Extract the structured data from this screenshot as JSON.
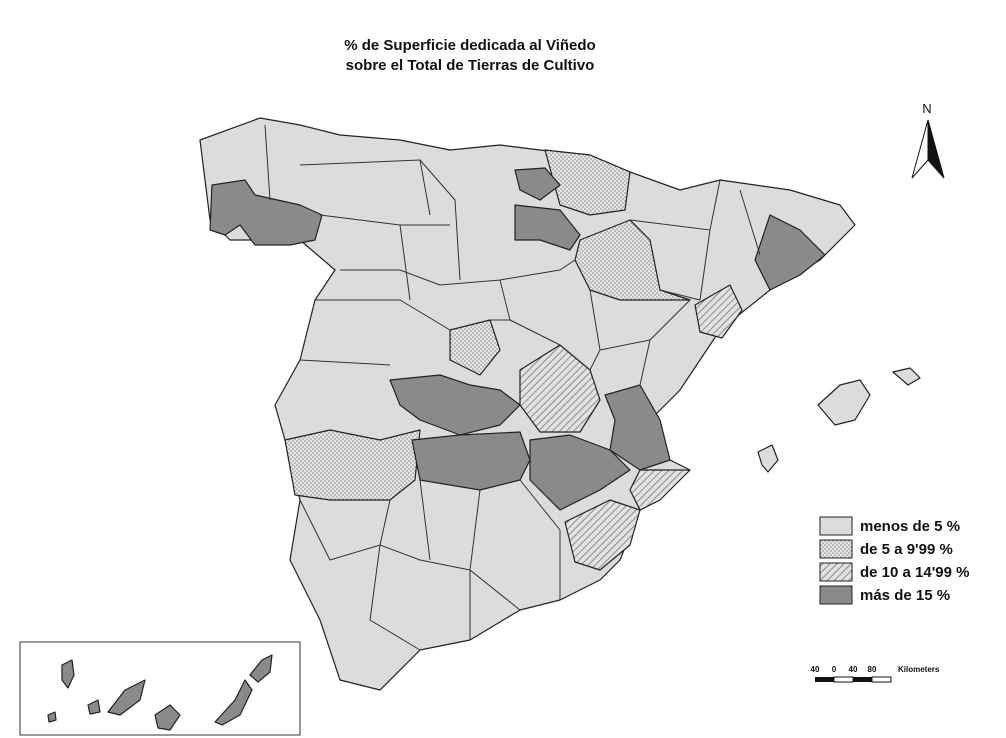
{
  "title": [
    "% de Superficie dedicada al Viñedo",
    "sobre el Total de Tierras de Cultivo"
  ],
  "north": "N",
  "legend": [
    "menos de 5 %",
    "de 5 a 9'99 %",
    "de 10 a 14'99 %",
    "más de 15 %"
  ],
  "scale": {
    "ticks": [
      "40",
      "0",
      "40",
      "80"
    ],
    "unit": "Kilometers"
  }
}
